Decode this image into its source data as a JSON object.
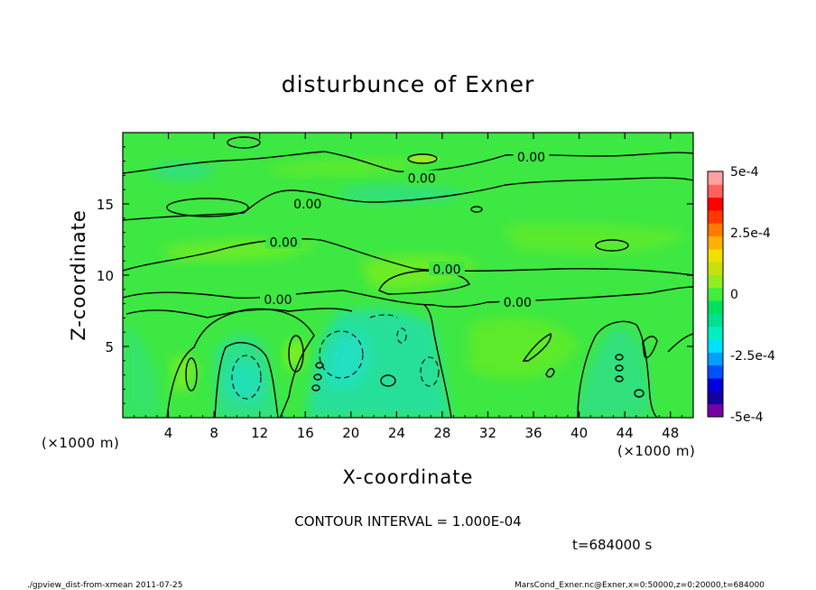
{
  "chart_data": {
    "type": "heatmap",
    "title": "disturbunce of Exner",
    "xlabel": "X-coordinate",
    "ylabel": "Z-coordinate",
    "x_unit_left": "(×1000 m)",
    "x_unit_right": "(×1000 m)",
    "xlim": [
      0,
      50
    ],
    "ylim": [
      0,
      20
    ],
    "x_ticks": [
      4,
      8,
      12,
      16,
      20,
      24,
      28,
      32,
      36,
      40,
      44,
      48
    ],
    "y_ticks": [
      5,
      10,
      15
    ],
    "colorbar": {
      "min": -0.0005,
      "max": 0.0005,
      "tick_labels": [
        "5e-4",
        "2.5e-4",
        "0",
        "-2.5e-4",
        "-5e-4"
      ],
      "tick_values": [
        0.0005,
        0.00025,
        0,
        -0.00025,
        -0.0005
      ],
      "colors": [
        "#7a00a8",
        "#1500a0",
        "#0000e0",
        "#0050ff",
        "#00a0ff",
        "#00e0ff",
        "#00f0c0",
        "#00e090",
        "#00e060",
        "#40ee40",
        "#90ee20",
        "#c8e010",
        "#f0e000",
        "#ffb000",
        "#ff7a00",
        "#ff3800",
        "#ff0000",
        "#ff6060",
        "#ffa0a0"
      ]
    },
    "contour_labels": [
      {
        "text": "0.00",
        "x": 26.2,
        "z": 16.8
      },
      {
        "text": "0.00",
        "x": 16.2,
        "z": 15.0
      },
      {
        "text": "0.00",
        "x": 35.8,
        "z": 18.3
      },
      {
        "text": "0.00",
        "x": 14.1,
        "z": 12.3
      },
      {
        "text": "0.00",
        "x": 28.4,
        "z": 10.4
      },
      {
        "text": "0.00",
        "x": 13.6,
        "z": 8.3
      },
      {
        "text": "0.00",
        "x": 34.6,
        "z": 8.1
      }
    ],
    "contour_interval_text": "CONTOUR INTERVAL = 1.000E-04",
    "time_text": "t=684000 s"
  },
  "footer": {
    "left": "./gpview_dist-from-xmean  2011-07-25",
    "right": "MarsCond_Exner.nc@Exner,x=0:50000,z=0:20000,t=684000"
  }
}
